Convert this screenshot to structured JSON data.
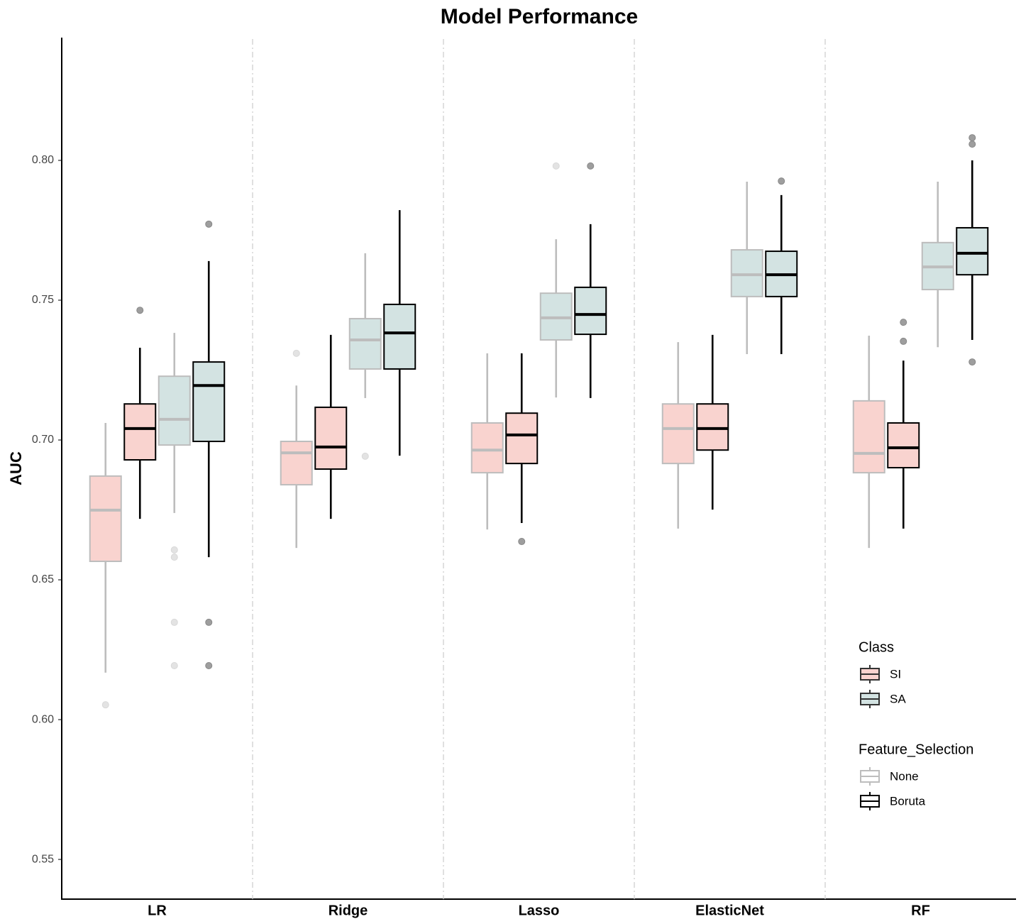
{
  "chart_data": {
    "type": "boxplot",
    "title": "Model Performance",
    "y_label": "AUC",
    "categories": [
      "LR",
      "Ridge",
      "Lasso",
      "ElasticNet",
      "RF"
    ],
    "ylim": [
      0.5358,
      0.8434
    ],
    "yticks": [
      0.55,
      {
        "value": 0.6,
        "label": "0.60"
      },
      0.65,
      {
        "value": 0.7,
        "label": "0.70"
      },
      0.75,
      {
        "value": 0.8,
        "label": "0.80"
      }
    ],
    "grid": false,
    "legend": {
      "position": "bottom-right",
      "class": {
        "title": "Class",
        "items": [
          {
            "name": "SI",
            "fill": "#f9d3cf"
          },
          {
            "name": "SA",
            "fill": "#d3e3e2"
          }
        ]
      },
      "feature_selection": {
        "title": "Feature_Selection",
        "items": [
          {
            "name": "None",
            "stroke": "#bdbdbd"
          },
          {
            "name": "Boruta",
            "stroke": "#000000"
          }
        ]
      }
    },
    "series": [
      {
        "fill": "#f9d3cf",
        "stroke": "#bdbdbd",
        "outlier_color": "#e3e3e3",
        "boxes": [
          {
            "low": 0.6168,
            "q1": 0.6566,
            "median": 0.6749,
            "q3": 0.6871,
            "high": 0.7061,
            "outliers": [
              0.6053
            ]
          },
          {
            "low": 0.6614,
            "q1": 0.684,
            "median": 0.6954,
            "q3": 0.6995,
            "high": 0.7195,
            "outliers": [
              0.731
            ]
          },
          {
            "low": 0.668,
            "q1": 0.6883,
            "median": 0.6964,
            "q3": 0.7061,
            "high": 0.731,
            "outliers": []
          },
          {
            "low": 0.6683,
            "q1": 0.6916,
            "median": 0.7041,
            "q3": 0.7129,
            "high": 0.735,
            "outliers": []
          },
          {
            "low": 0.6614,
            "q1": 0.6883,
            "median": 0.6952,
            "q3": 0.714,
            "high": 0.7373,
            "outliers": []
          }
        ]
      },
      {
        "fill": "#f9d3cf",
        "stroke": "#000000",
        "outlier_color": "#9e9e9e",
        "boxes": [
          {
            "low": 0.6718,
            "q1": 0.6929,
            "median": 0.7041,
            "q3": 0.7129,
            "high": 0.733,
            "outliers": [
              0.7464
            ]
          },
          {
            "low": 0.6718,
            "q1": 0.6896,
            "median": 0.6975,
            "q3": 0.7117,
            "high": 0.7376,
            "outliers": []
          },
          {
            "low": 0.6703,
            "q1": 0.6916,
            "median": 0.7018,
            "q3": 0.7096,
            "high": 0.731,
            "outliers": [
              0.6637
            ]
          },
          {
            "low": 0.6751,
            "q1": 0.6964,
            "median": 0.7041,
            "q3": 0.7129,
            "high": 0.7376,
            "outliers": []
          },
          {
            "low": 0.6683,
            "q1": 0.6901,
            "median": 0.6972,
            "q3": 0.7061,
            "high": 0.7284,
            "outliers": [
              0.7353,
              0.7421
            ]
          }
        ]
      },
      {
        "fill": "#d3e3e2",
        "stroke": "#bdbdbd",
        "outlier_color": "#e3e3e3",
        "boxes": [
          {
            "low": 0.6739,
            "q1": 0.6982,
            "median": 0.7074,
            "q3": 0.7228,
            "high": 0.7383,
            "outliers": [
              0.6607,
              0.6581,
              0.6348,
              0.6193
            ]
          },
          {
            "low": 0.715,
            "q1": 0.7254,
            "median": 0.7358,
            "q3": 0.7434,
            "high": 0.7668,
            "outliers": [
              0.6942
            ]
          },
          {
            "low": 0.7152,
            "q1": 0.7358,
            "median": 0.7437,
            "q3": 0.7525,
            "high": 0.7718,
            "outliers": [
              0.798
            ]
          },
          {
            "low": 0.7307,
            "q1": 0.7513,
            "median": 0.7591,
            "q3": 0.768,
            "high": 0.7924,
            "outliers": []
          },
          {
            "low": 0.7332,
            "q1": 0.7538,
            "median": 0.7619,
            "q3": 0.7706,
            "high": 0.7924,
            "outliers": []
          }
        ]
      },
      {
        "fill": "#d3e3e2",
        "stroke": "#000000",
        "outlier_color": "#9e9e9e",
        "boxes": [
          {
            "low": 0.6581,
            "q1": 0.6995,
            "median": 0.7195,
            "q3": 0.7279,
            "high": 0.764,
            "outliers": [
              0.7772,
              0.6348,
              0.6193
            ]
          },
          {
            "low": 0.6944,
            "q1": 0.7254,
            "median": 0.7383,
            "q3": 0.7485,
            "high": 0.7822,
            "outliers": []
          },
          {
            "low": 0.715,
            "q1": 0.7378,
            "median": 0.7449,
            "q3": 0.7546,
            "high": 0.7772,
            "outliers": [
              0.798
            ]
          },
          {
            "low": 0.7307,
            "q1": 0.7513,
            "median": 0.7591,
            "q3": 0.7675,
            "high": 0.7876,
            "outliers": [
              0.7926
            ]
          },
          {
            "low": 0.7358,
            "q1": 0.7591,
            "median": 0.7668,
            "q3": 0.7759,
            "high": 0.8,
            "outliers": [
              0.7279,
              0.8058,
              0.8081
            ]
          }
        ]
      }
    ]
  }
}
